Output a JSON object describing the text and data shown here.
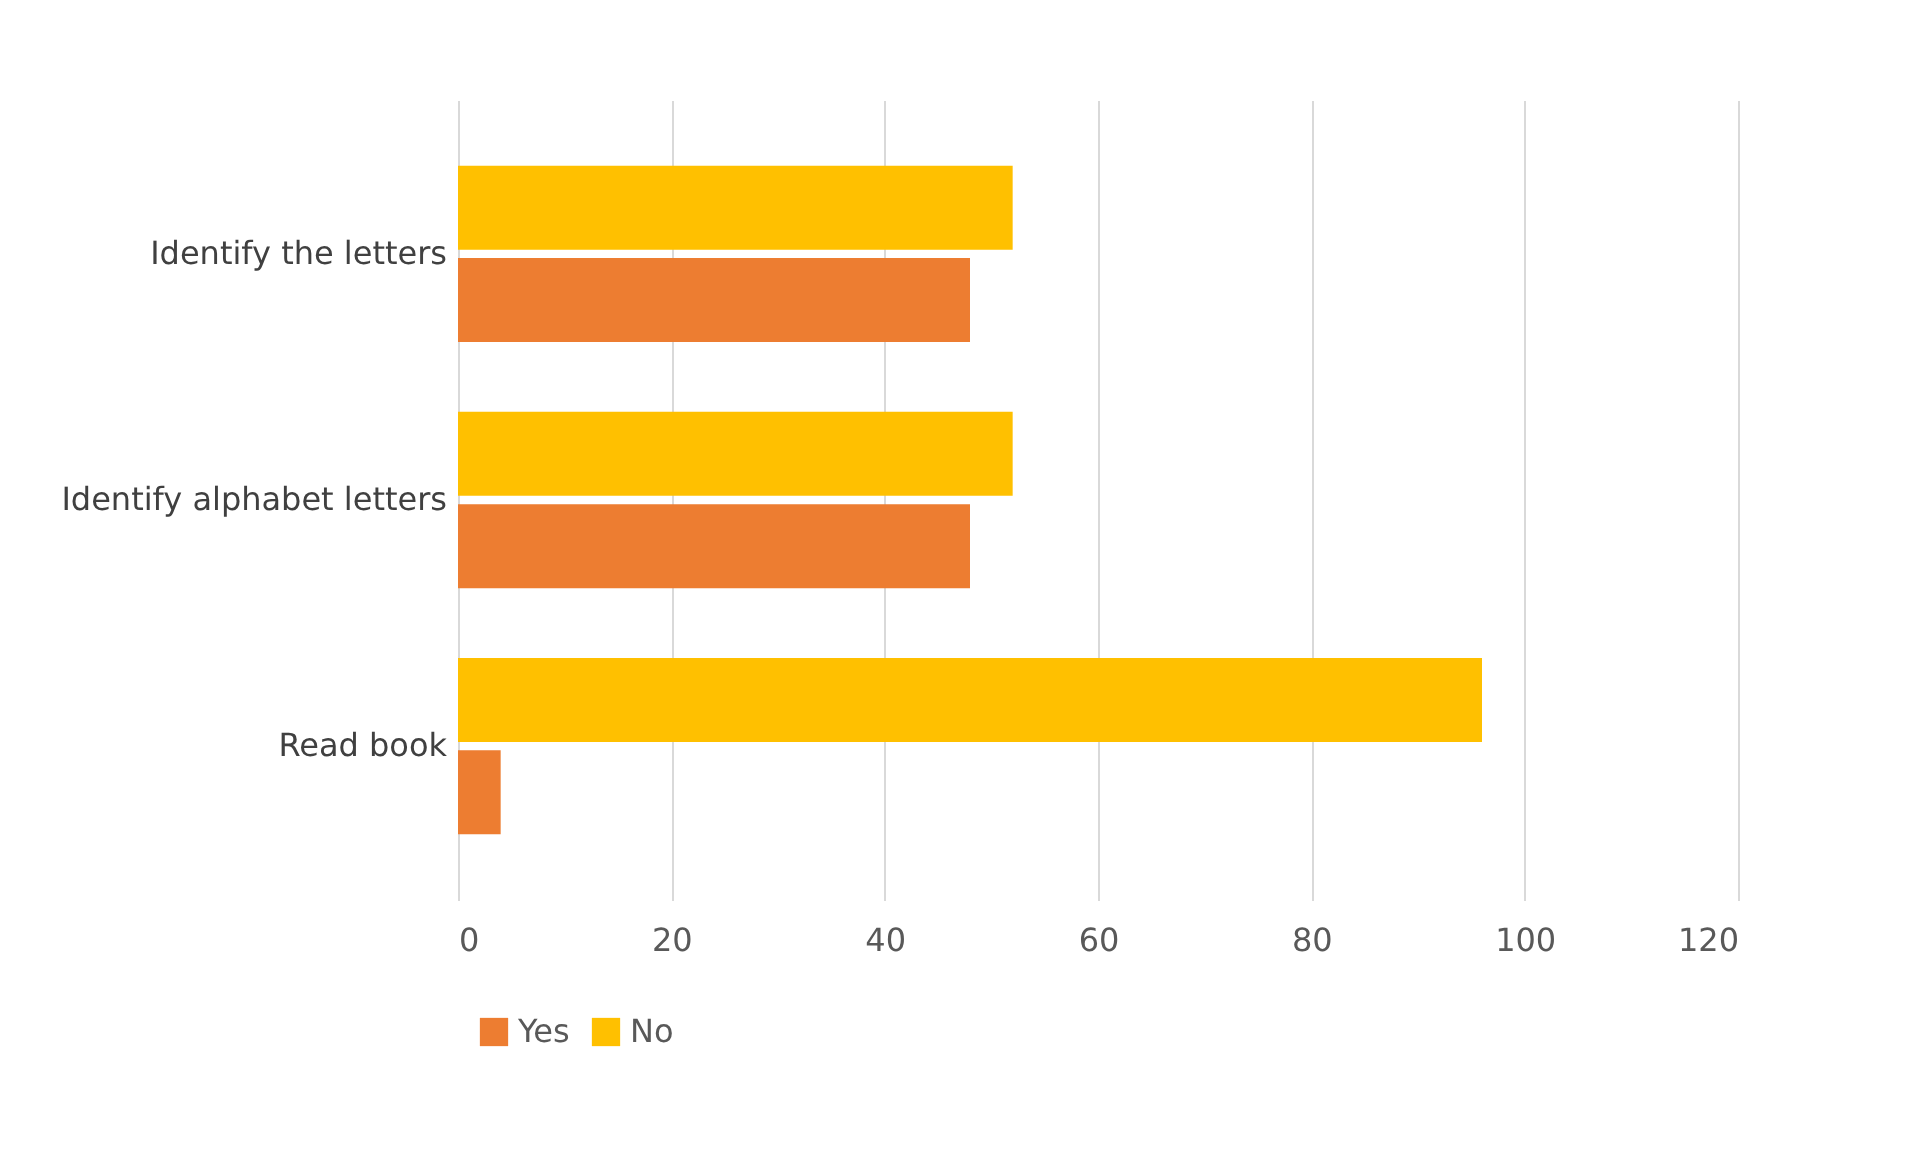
{
  "chart_data": {
    "type": "bar",
    "orientation": "horizontal",
    "categories": [
      "Identify the letters",
      "Identify alphabet letters",
      "Read book"
    ],
    "series": [
      {
        "name": "Yes",
        "color": "#ed7d31",
        "values": [
          48,
          48,
          4
        ]
      },
      {
        "name": "No",
        "color": "#ffc000",
        "values": [
          52,
          52,
          96
        ]
      }
    ],
    "xlim": [
      0,
      120
    ],
    "xticks": [
      0,
      20,
      40,
      60,
      80,
      100,
      120
    ],
    "grid": "x",
    "legend": "bottom"
  }
}
